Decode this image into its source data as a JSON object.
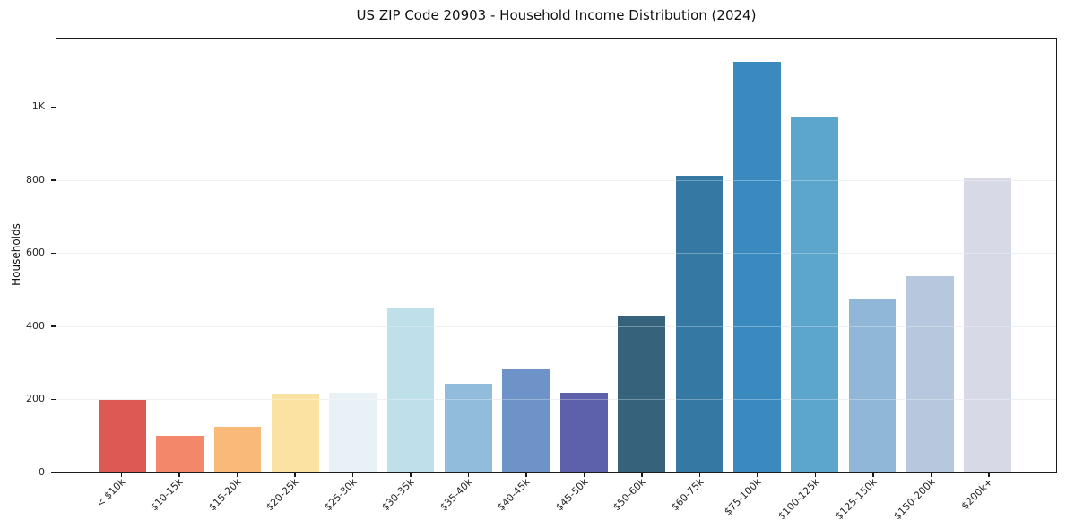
{
  "chart_data": {
    "type": "bar",
    "title": "US ZIP Code 20903 - Household Income Distribution (2024)",
    "xlabel": "",
    "ylabel": "Households",
    "categories": [
      "< $10k",
      "$10-15k",
      "$15-20k",
      "$20-25k",
      "$25-30k",
      "$30-35k",
      "$35-40k",
      "$40-45k",
      "$45-50k",
      "$50-60k",
      "$60-75k",
      "$75-100k",
      "$100-125k",
      "$125-150k",
      "$150-200k",
      "$200k+"
    ],
    "values": [
      197,
      98,
      124,
      215,
      216,
      448,
      242,
      284,
      217,
      429,
      813,
      1126,
      973,
      472,
      538,
      805
    ],
    "bar_colors": [
      "#dc5a53",
      "#f3876a",
      "#f9ba79",
      "#fce2a2",
      "#e8f1f5",
      "#bfdfeb",
      "#92bcdc",
      "#6d93c8",
      "#5d60ab",
      "#36627c",
      "#3578a4",
      "#3a8ac0",
      "#5ca5cd",
      "#90b7d7",
      "#b7c8de",
      "#d7d9e6"
    ],
    "yticks": [
      {
        "value": 0,
        "label": "0"
      },
      {
        "value": 200,
        "label": "200"
      },
      {
        "value": 400,
        "label": "400"
      },
      {
        "value": 600,
        "label": "600"
      },
      {
        "value": 800,
        "label": "800"
      },
      {
        "value": 1000,
        "label": "1K"
      }
    ],
    "ylim": [
      0,
      1190
    ],
    "grid": "horizontal",
    "legend": "none",
    "axis_color": "#1a1a1a",
    "grid_color": "#e9eaee",
    "background_color": "#ffffff"
  }
}
